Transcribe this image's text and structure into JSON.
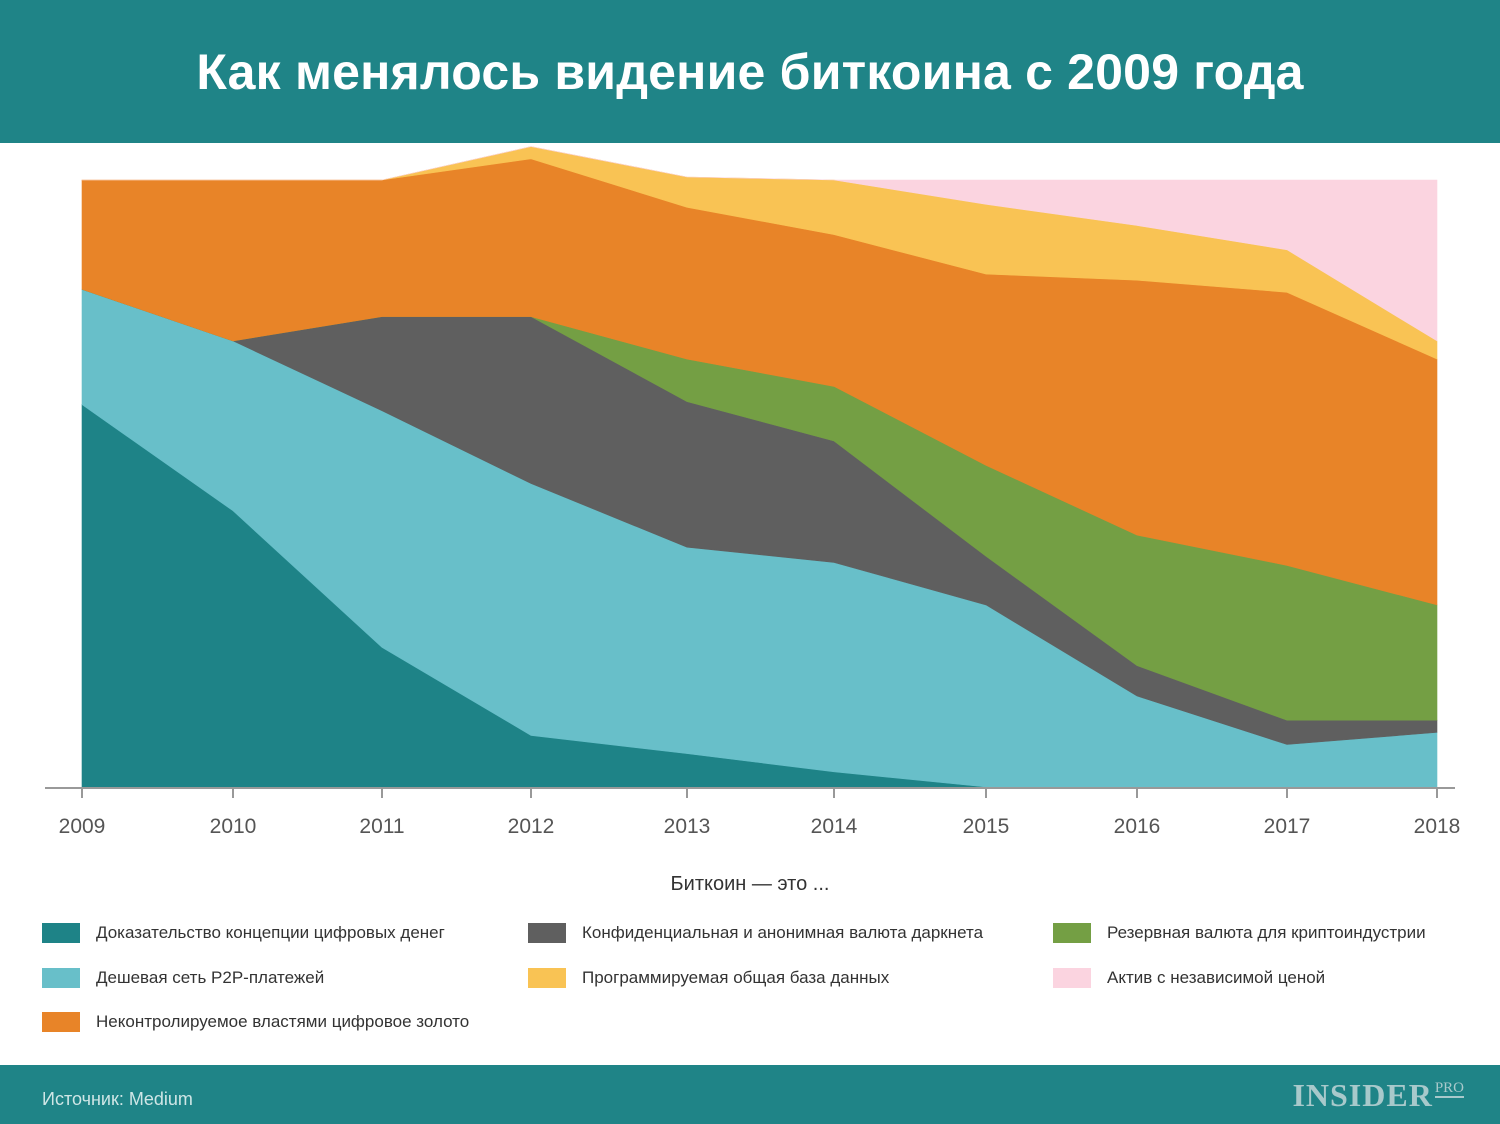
{
  "header": {
    "title": "Как менялось видение биткоина с 2009 года"
  },
  "legend": {
    "title": "Биткоин — это ..."
  },
  "footer": {
    "source": "Источник: Medium",
    "logo_main": "INSIDER",
    "logo_pro": "PRO"
  },
  "colors": {
    "header_bg": "#1f8487",
    "proof": "#1e8387",
    "p2p": "#68bfc9",
    "darknet": "#5f5f5f",
    "reserve": "#749f44",
    "gold": "#e88428",
    "database": "#f9c354",
    "asset": "#fbd4e0"
  },
  "chart_data": {
    "type": "area",
    "stacked": true,
    "normalized": true,
    "x": [
      "2009",
      "2010",
      "2011",
      "2012",
      "2013",
      "2014",
      "2015",
      "2016",
      "2017",
      "2018"
    ],
    "ylim": [
      0,
      100
    ],
    "legend_position": "bottom",
    "grid": false,
    "series": [
      {
        "name": "Доказательство концепции цифровых денег",
        "color": "#1e8387",
        "values": [
          63,
          45.5,
          23,
          8.5,
          5.5,
          2.5,
          0,
          0,
          0,
          0
        ]
      },
      {
        "name": "Дешевая сеть P2P-платежей",
        "color": "#68bfc9",
        "values": [
          19,
          28,
          39,
          41.5,
          34,
          34.5,
          30,
          15,
          7,
          9
        ]
      },
      {
        "name": "Конфиденциальная и анонимная валюта даркнета",
        "color": "#5f5f5f",
        "values": [
          0,
          0,
          15.5,
          27.5,
          24,
          20,
          8,
          5,
          4,
          2
        ]
      },
      {
        "name": "Резервная валюта для криптоиндустрии",
        "color": "#749f44",
        "values": [
          0,
          0,
          0,
          0,
          7,
          9,
          15,
          21.5,
          25.5,
          19
        ]
      },
      {
        "name": "Неконтролируемое властями цифровое золото",
        "color": "#e88428",
        "values": [
          18,
          26.5,
          22.5,
          26,
          25,
          25,
          31.5,
          42,
          45,
          40.5
        ]
      },
      {
        "name": "Программируемая общая база данных",
        "color": "#f9c354",
        "values": [
          0,
          0,
          0,
          2,
          5,
          9,
          11.5,
          9,
          7,
          3
        ]
      },
      {
        "name": "Актив с независимой ценой",
        "color": "#fbd4e0",
        "values": [
          0,
          0,
          0,
          0,
          0,
          0,
          4,
          7.5,
          11.5,
          26.5
        ]
      }
    ]
  }
}
